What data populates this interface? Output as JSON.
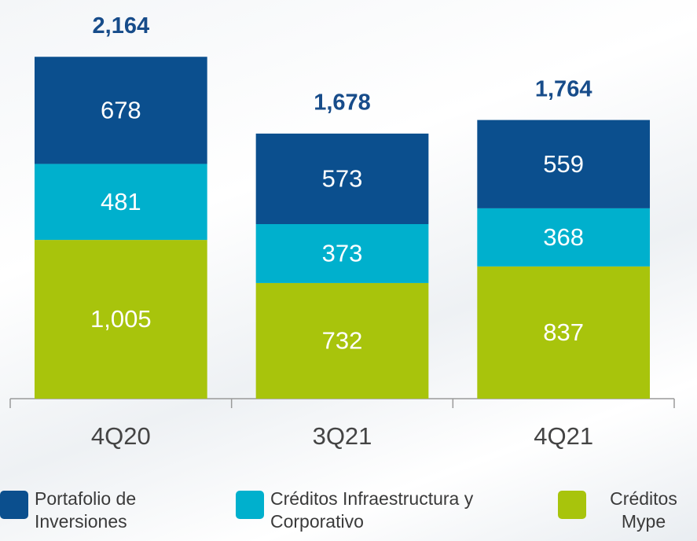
{
  "chart_data": {
    "type": "stacked_bar",
    "categories": [
      "4Q20",
      "3Q21",
      "4Q21"
    ],
    "series": [
      {
        "name": "Portafolio de Inversiones",
        "color": "#0b4f8e",
        "values": [
          678,
          573,
          559
        ]
      },
      {
        "name": "Créditos Infraestructura y Corporativo",
        "color": "#00b0cd",
        "values": [
          481,
          373,
          368
        ]
      },
      {
        "name": "Créditos Mype",
        "color": "#a8c40c",
        "values": [
          1005,
          732,
          837
        ],
        "value_labels": [
          "1,005",
          "732",
          "837"
        ]
      }
    ],
    "totals": {
      "values": [
        2164,
        1678,
        1764
      ],
      "value_labels": [
        "2,164",
        "1,678",
        "1,764"
      ]
    },
    "ylim": [
      0,
      2200
    ],
    "legend": "bottom"
  }
}
